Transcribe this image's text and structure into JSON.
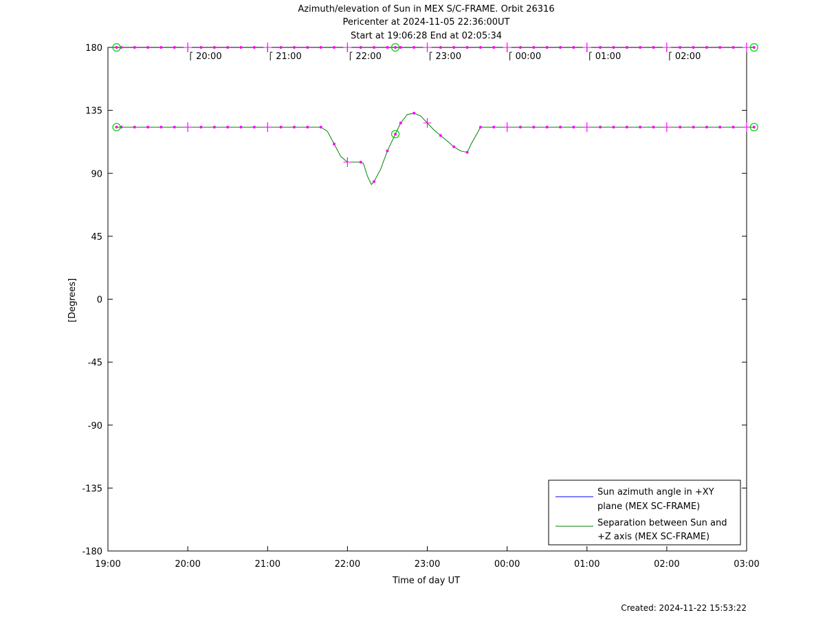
{
  "chart_data": {
    "type": "line",
    "title_lines": [
      "Azimuth/elevation of Sun in MEX S/C-FRAME.  Orbit 26316",
      "Pericenter at 2024-11-05 22:36:00UT",
      "Start at 19:06:28 End at 02:05:34"
    ],
    "xlabel": "Time of day UT",
    "ylabel": "[Degrees]",
    "x_axis": {
      "range_hours": [
        19,
        27
      ],
      "tick_labels": [
        "19:00",
        "20:00",
        "21:00",
        "22:00",
        "23:00",
        "00:00",
        "01:00",
        "02:00",
        "03:00"
      ]
    },
    "y_axis": {
      "range": [
        -180,
        180
      ],
      "ticks": [
        180,
        135,
        90,
        45,
        0,
        -45,
        -90,
        -135,
        -180
      ]
    },
    "grid": false,
    "legend_position": "bottom-right",
    "hour_marker_labels": [
      "20:00",
      "21:00",
      "22:00",
      "23:00",
      "00:00",
      "01:00",
      "02:00"
    ],
    "series": [
      {
        "name": "Sun azimuth angle in +XY plane (MEX SC-FRAME)",
        "legend_lines": [
          "Sun azimuth angle in +XY",
          "plane (MEX SC-FRAME)"
        ],
        "color": "#0000ff",
        "x_hours": [
          19.108,
          27.093
        ],
        "y": [
          180,
          180
        ]
      },
      {
        "name": "Separation between Sun and +Z axis (MEX SC-FRAME)",
        "legend_lines": [
          "Separation between Sun and",
          "+Z axis (MEX SC-FRAME)"
        ],
        "color": "#008000",
        "x_hours": [
          19.108,
          21.667,
          21.75,
          21.833,
          21.917,
          22.0,
          22.083,
          22.167,
          22.2,
          22.25,
          22.3,
          22.333,
          22.417,
          22.5,
          22.583,
          22.667,
          22.75,
          22.833,
          22.917,
          23.0,
          23.083,
          23.167,
          23.25,
          23.333,
          23.417,
          23.5,
          23.55,
          23.667,
          27.093
        ],
        "y": [
          123,
          123,
          120,
          111,
          102,
          98,
          98,
          98,
          97,
          88,
          82,
          84,
          93,
          106,
          116,
          126,
          132,
          133,
          131,
          126,
          121,
          117,
          113,
          109,
          106,
          105,
          111,
          123,
          123
        ]
      }
    ],
    "tick_markers_x_hours": [
      20,
      21,
      22,
      23,
      24,
      25,
      26
    ],
    "circle_markers": [
      {
        "series": 0,
        "x_hours": [
          19.108,
          22.6,
          27.093
        ]
      },
      {
        "series": 1,
        "x_hours": [
          19.108,
          22.6,
          27.093
        ]
      }
    ],
    "marker_color": "#ff00ff",
    "circle_color": "#00cc00"
  },
  "footer": {
    "created": "Created: 2024-11-22 15:53:22"
  }
}
